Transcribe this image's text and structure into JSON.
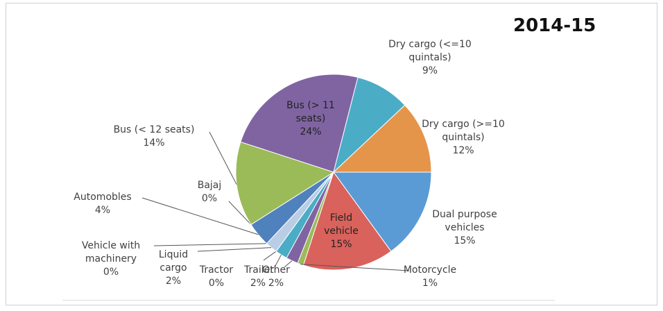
{
  "chart_data": {
    "type": "pie",
    "title": "2014-15",
    "categories": [
      "Dual purpose vehicles",
      "Field vehicle",
      "Motorcycle",
      "Other",
      "Trailer",
      "Tractor",
      "Liquid cargo",
      "Vehicle with machinery",
      "Automobles",
      "Bajaj",
      "Bus (< 12 seats)",
      "Bus (> 11 seats)",
      "Dry cargo (<=10 quintals)",
      "Dry cargo (>=10 quintals)"
    ],
    "values": [
      15,
      15,
      1,
      2,
      2,
      0,
      2,
      0,
      4,
      0,
      14,
      24,
      9,
      12
    ],
    "value_labels": [
      "15%",
      "15%",
      "1%",
      "2%",
      "2%",
      "0%",
      "2%",
      "0%",
      "4%",
      "0%",
      "14%",
      "24%",
      "9%",
      "12%"
    ],
    "colors": [
      "#5b9bd5",
      "#d9625c",
      "#9bbb59",
      "#8064a2",
      "#4bacc6",
      "#f79646",
      "#b9cde5",
      "#c0504d",
      "#4f81bd",
      "#f2a86b",
      "#9bbb59",
      "#8064a2",
      "#4bacc6",
      "#e5954a"
    ]
  }
}
